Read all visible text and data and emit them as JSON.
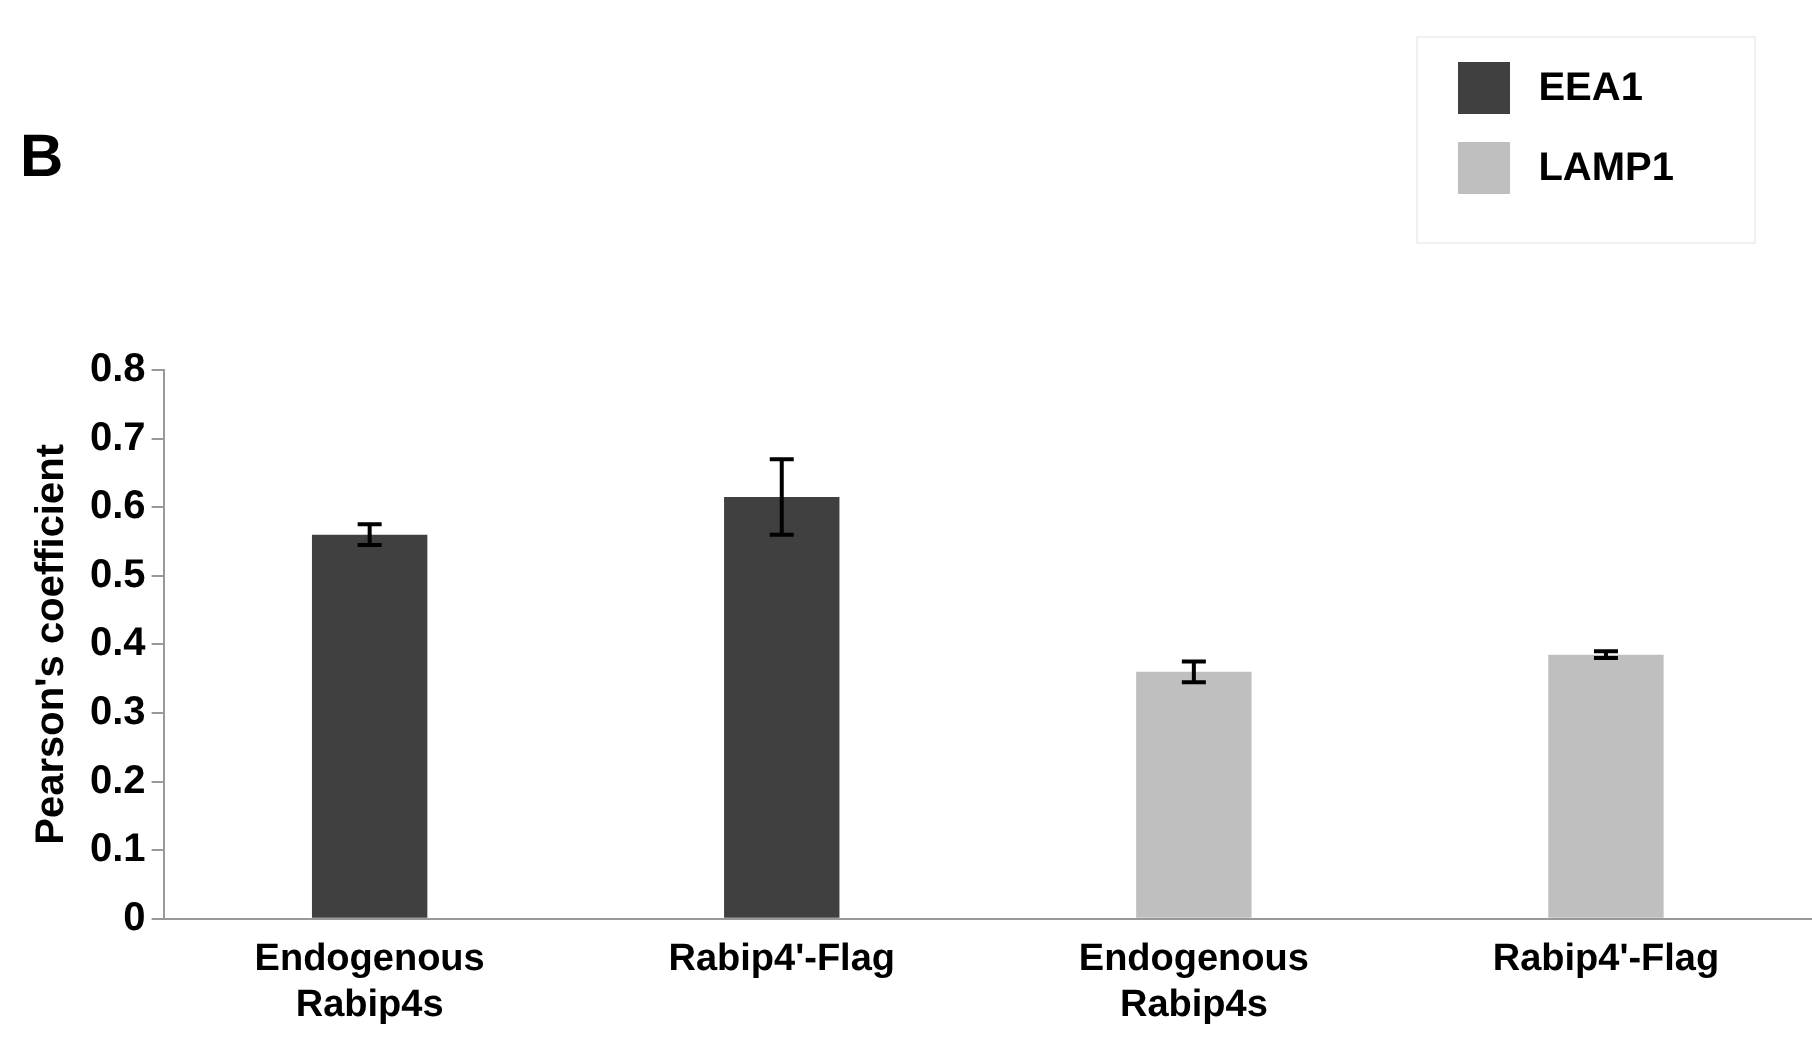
{
  "chart_data": {
    "type": "bar",
    "ylabel": "Pearson's coefficient",
    "annotations": [
      "B"
    ],
    "categories": [
      "Endogenous Rabip4s",
      "Rabip4'-Flag",
      "Endogenous Rabip4s",
      "Rabip4'-Flag"
    ],
    "series": [
      {
        "name": "EEA1",
        "color": "#404040",
        "values": [
          0.56,
          0.615,
          null,
          null
        ],
        "errors": [
          0.015,
          0.055,
          null,
          null
        ]
      },
      {
        "name": "LAMP1",
        "color": "#bfbfbf",
        "values": [
          null,
          null,
          0.36,
          0.385
        ],
        "errors": [
          null,
          null,
          0.015,
          0.005
        ]
      }
    ],
    "ylim": [
      0,
      0.8
    ],
    "yticks": [
      0,
      0.1,
      0.2,
      0.3,
      0.4,
      0.5,
      0.6,
      0.7,
      0.8
    ],
    "grid": false,
    "legend": "top right"
  }
}
